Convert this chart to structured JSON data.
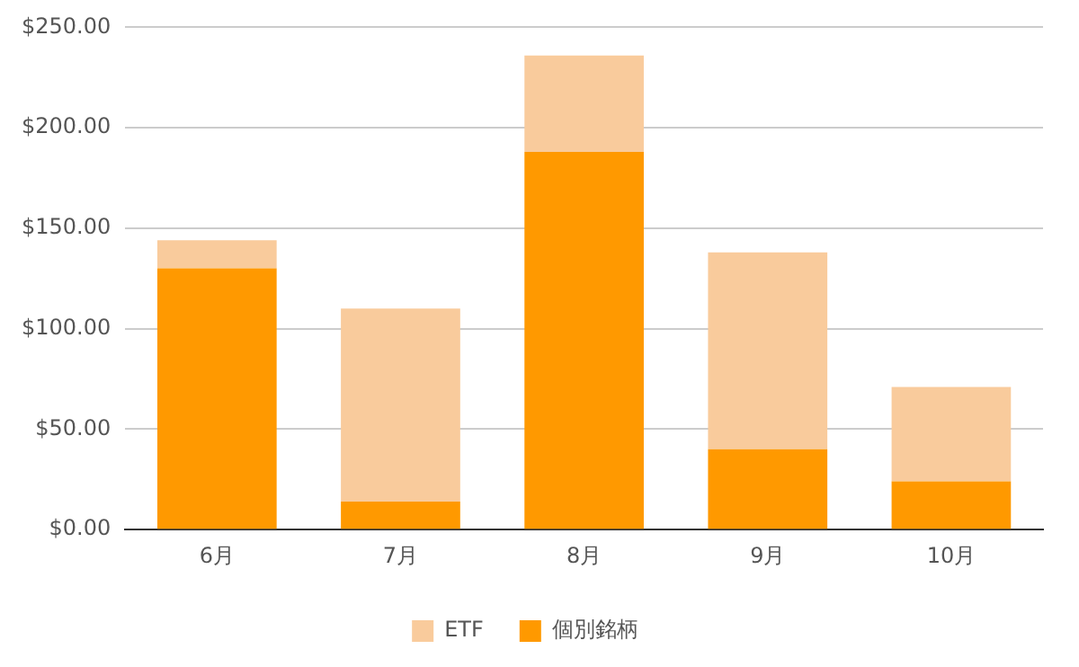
{
  "chart_data": {
    "type": "bar",
    "stacked": true,
    "categories": [
      "6月",
      "7月",
      "8月",
      "9月",
      "10月"
    ],
    "series": [
      {
        "name": "個別銘柄",
        "color": "#ff9900",
        "values": [
          130,
          14,
          188,
          40,
          24
        ]
      },
      {
        "name": "ETF",
        "color": "#f9cb9c",
        "values": [
          14,
          96,
          48,
          98,
          47
        ]
      }
    ],
    "ylim": [
      0,
      250
    ],
    "yticks": [
      {
        "value": 0,
        "label": "$0.00"
      },
      {
        "value": 50,
        "label": "$50.00"
      },
      {
        "value": 100,
        "label": "$100.00"
      },
      {
        "value": 150,
        "label": "$150.00"
      },
      {
        "value": 200,
        "label": "$200.00"
      },
      {
        "value": 250,
        "label": "$250.00"
      }
    ],
    "grid": "y",
    "legend": "bottom"
  }
}
